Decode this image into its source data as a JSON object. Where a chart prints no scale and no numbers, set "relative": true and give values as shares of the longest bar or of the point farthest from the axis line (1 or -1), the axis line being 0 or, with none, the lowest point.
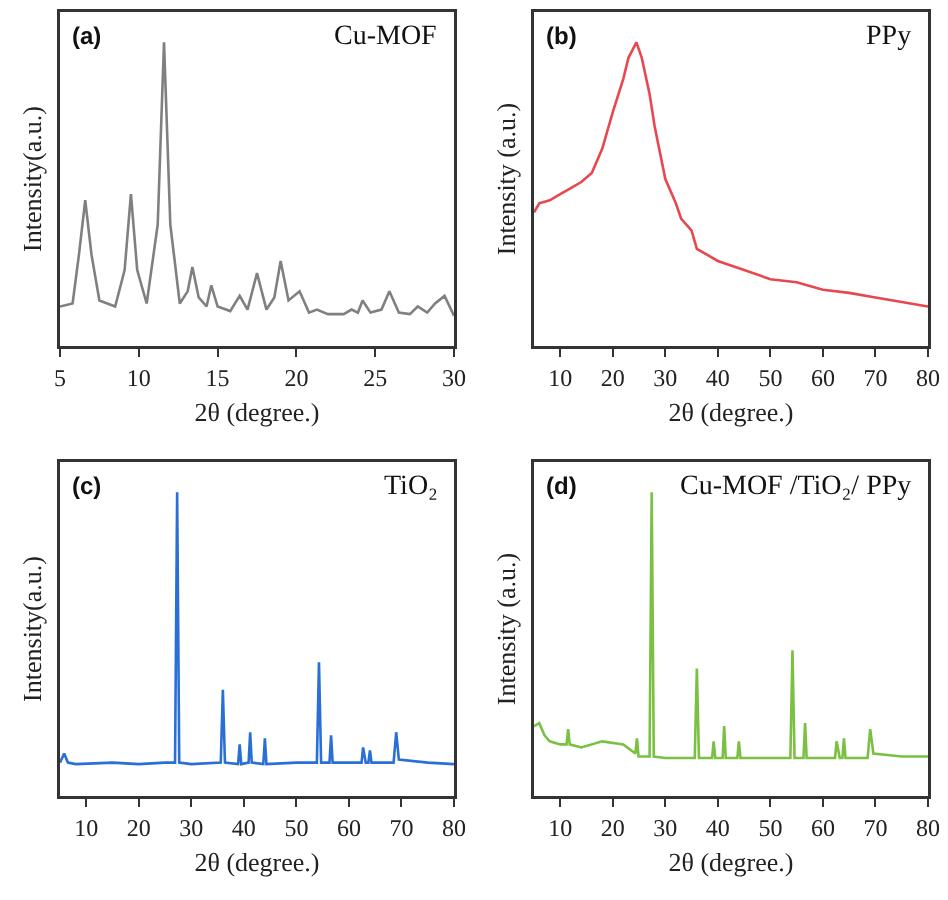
{
  "chart_data": [
    {
      "type": "line",
      "relative": true,
      "xlabel": "2θ (degree.)",
      "ylabel": "Intensity(a.u.)",
      "annotations": [
        "(a)",
        "Cu-MOF"
      ],
      "xlim": [
        5,
        30
      ],
      "xticks": [
        5,
        10,
        15,
        20,
        25,
        30
      ],
      "tick_labels": "x",
      "series": [
        {
          "color": "#808080",
          "x": [
            5,
            5.8,
            6.2,
            6.6,
            7.0,
            7.5,
            8.5,
            9.1,
            9.5,
            9.9,
            10.5,
            11.2,
            11.6,
            12.0,
            12.6,
            13.1,
            13.4,
            13.8,
            14.3,
            14.6,
            15.0,
            15.8,
            16.4,
            16.9,
            17.5,
            18.1,
            18.6,
            19.0,
            19.5,
            20.2,
            20.8,
            21.3,
            22,
            23,
            23.5,
            23.9,
            24.2,
            24.7,
            25.4,
            25.9,
            26.5,
            27.2,
            27.7,
            28.3,
            28.8,
            29.4,
            30
          ],
          "values": [
            0.13,
            0.14,
            0.3,
            0.48,
            0.3,
            0.15,
            0.13,
            0.25,
            0.5,
            0.25,
            0.14,
            0.4,
            1.0,
            0.4,
            0.14,
            0.18,
            0.26,
            0.16,
            0.13,
            0.2,
            0.13,
            0.115,
            0.165,
            0.12,
            0.24,
            0.12,
            0.16,
            0.28,
            0.15,
            0.18,
            0.11,
            0.12,
            0.105,
            0.105,
            0.12,
            0.11,
            0.15,
            0.11,
            0.12,
            0.18,
            0.11,
            0.105,
            0.13,
            0.11,
            0.14,
            0.165,
            0.1
          ]
        }
      ]
    },
    {
      "type": "line",
      "relative": true,
      "xlabel": "2θ (degree.)",
      "ylabel": "Intensity (a.u.)",
      "annotations": [
        "(b)",
        "PPy"
      ],
      "xlim": [
        5,
        80
      ],
      "xticks": [
        10,
        20,
        30,
        40,
        50,
        60,
        70,
        80
      ],
      "tick_labels": "x",
      "series": [
        {
          "color": "#e8474f",
          "x": [
            5,
            6,
            8,
            10,
            12,
            14,
            16,
            18,
            20,
            22,
            23,
            24.5,
            25.5,
            27,
            28,
            30,
            32,
            33,
            35,
            36,
            38,
            40,
            45,
            50,
            55,
            60,
            65,
            70,
            75,
            80
          ],
          "values": [
            0.44,
            0.47,
            0.48,
            0.5,
            0.52,
            0.54,
            0.57,
            0.65,
            0.77,
            0.88,
            0.95,
            1.0,
            0.95,
            0.83,
            0.72,
            0.55,
            0.47,
            0.42,
            0.38,
            0.32,
            0.3,
            0.28,
            0.25,
            0.22,
            0.21,
            0.185,
            0.175,
            0.16,
            0.145,
            0.13
          ]
        }
      ]
    },
    {
      "type": "line",
      "relative": true,
      "xlabel": "2θ (degree.)",
      "ylabel": "Intensity(a.u.)",
      "annotations": [
        "(c)",
        "TiO₂"
      ],
      "xlim": [
        5,
        80
      ],
      "xticks": [
        10,
        20,
        30,
        40,
        50,
        60,
        70,
        80
      ],
      "tick_labels": "x",
      "series": [
        {
          "color": "#2a6fd6",
          "x": [
            5,
            5.8,
            6.5,
            8,
            15,
            20,
            25,
            26.9,
            27.3,
            27.7,
            30,
            35.6,
            36,
            36.4,
            38.9,
            39.2,
            39.5,
            40.9,
            41.2,
            41.5,
            43.7,
            44,
            44.3,
            50,
            53.9,
            54.3,
            54.7,
            56.3,
            56.6,
            56.9,
            62.4,
            62.7,
            63.2,
            63.7,
            64,
            64.3,
            68.5,
            69,
            69.5,
            75,
            80
          ],
          "values": [
            0.11,
            0.14,
            0.11,
            0.105,
            0.11,
            0.105,
            0.11,
            0.11,
            1.0,
            0.11,
            0.105,
            0.11,
            0.35,
            0.11,
            0.105,
            0.17,
            0.105,
            0.11,
            0.21,
            0.11,
            0.105,
            0.19,
            0.105,
            0.11,
            0.11,
            0.44,
            0.11,
            0.11,
            0.2,
            0.11,
            0.11,
            0.16,
            0.11,
            0.11,
            0.15,
            0.11,
            0.11,
            0.21,
            0.12,
            0.11,
            0.105
          ]
        }
      ]
    },
    {
      "type": "line",
      "relative": true,
      "xlabel": "2θ (degree.)",
      "ylabel": "Intensity (a.u.)",
      "annotations": [
        "(d)",
        "Cu-MOF /TiO₂/ PPy"
      ],
      "xlim": [
        5,
        80
      ],
      "xticks": [
        10,
        20,
        30,
        40,
        50,
        60,
        70,
        80
      ],
      "tick_labels": "x",
      "series": [
        {
          "color": "#7ac143",
          "x": [
            5,
            6,
            7,
            8,
            10,
            11.2,
            11.5,
            11.8,
            14,
            18,
            22,
            24.3,
            24.6,
            24.9,
            26,
            27,
            27.4,
            27.8,
            30,
            35.6,
            36,
            36.4,
            38.9,
            39.2,
            39.5,
            40.9,
            41.2,
            41.5,
            43.7,
            44,
            44.3,
            50,
            53.8,
            54.2,
            54.6,
            56.3,
            56.6,
            56.9,
            62.3,
            62.6,
            63.2,
            63.7,
            64,
            64.3,
            68.5,
            69,
            69.6,
            75,
            80
          ],
          "values": [
            0.23,
            0.24,
            0.2,
            0.18,
            0.17,
            0.17,
            0.22,
            0.17,
            0.16,
            0.18,
            0.17,
            0.14,
            0.19,
            0.13,
            0.13,
            0.13,
            1.0,
            0.13,
            0.125,
            0.125,
            0.42,
            0.125,
            0.125,
            0.18,
            0.125,
            0.125,
            0.23,
            0.125,
            0.125,
            0.18,
            0.125,
            0.125,
            0.125,
            0.48,
            0.125,
            0.125,
            0.24,
            0.125,
            0.125,
            0.18,
            0.125,
            0.125,
            0.19,
            0.125,
            0.125,
            0.22,
            0.14,
            0.13,
            0.13
          ]
        }
      ]
    }
  ]
}
